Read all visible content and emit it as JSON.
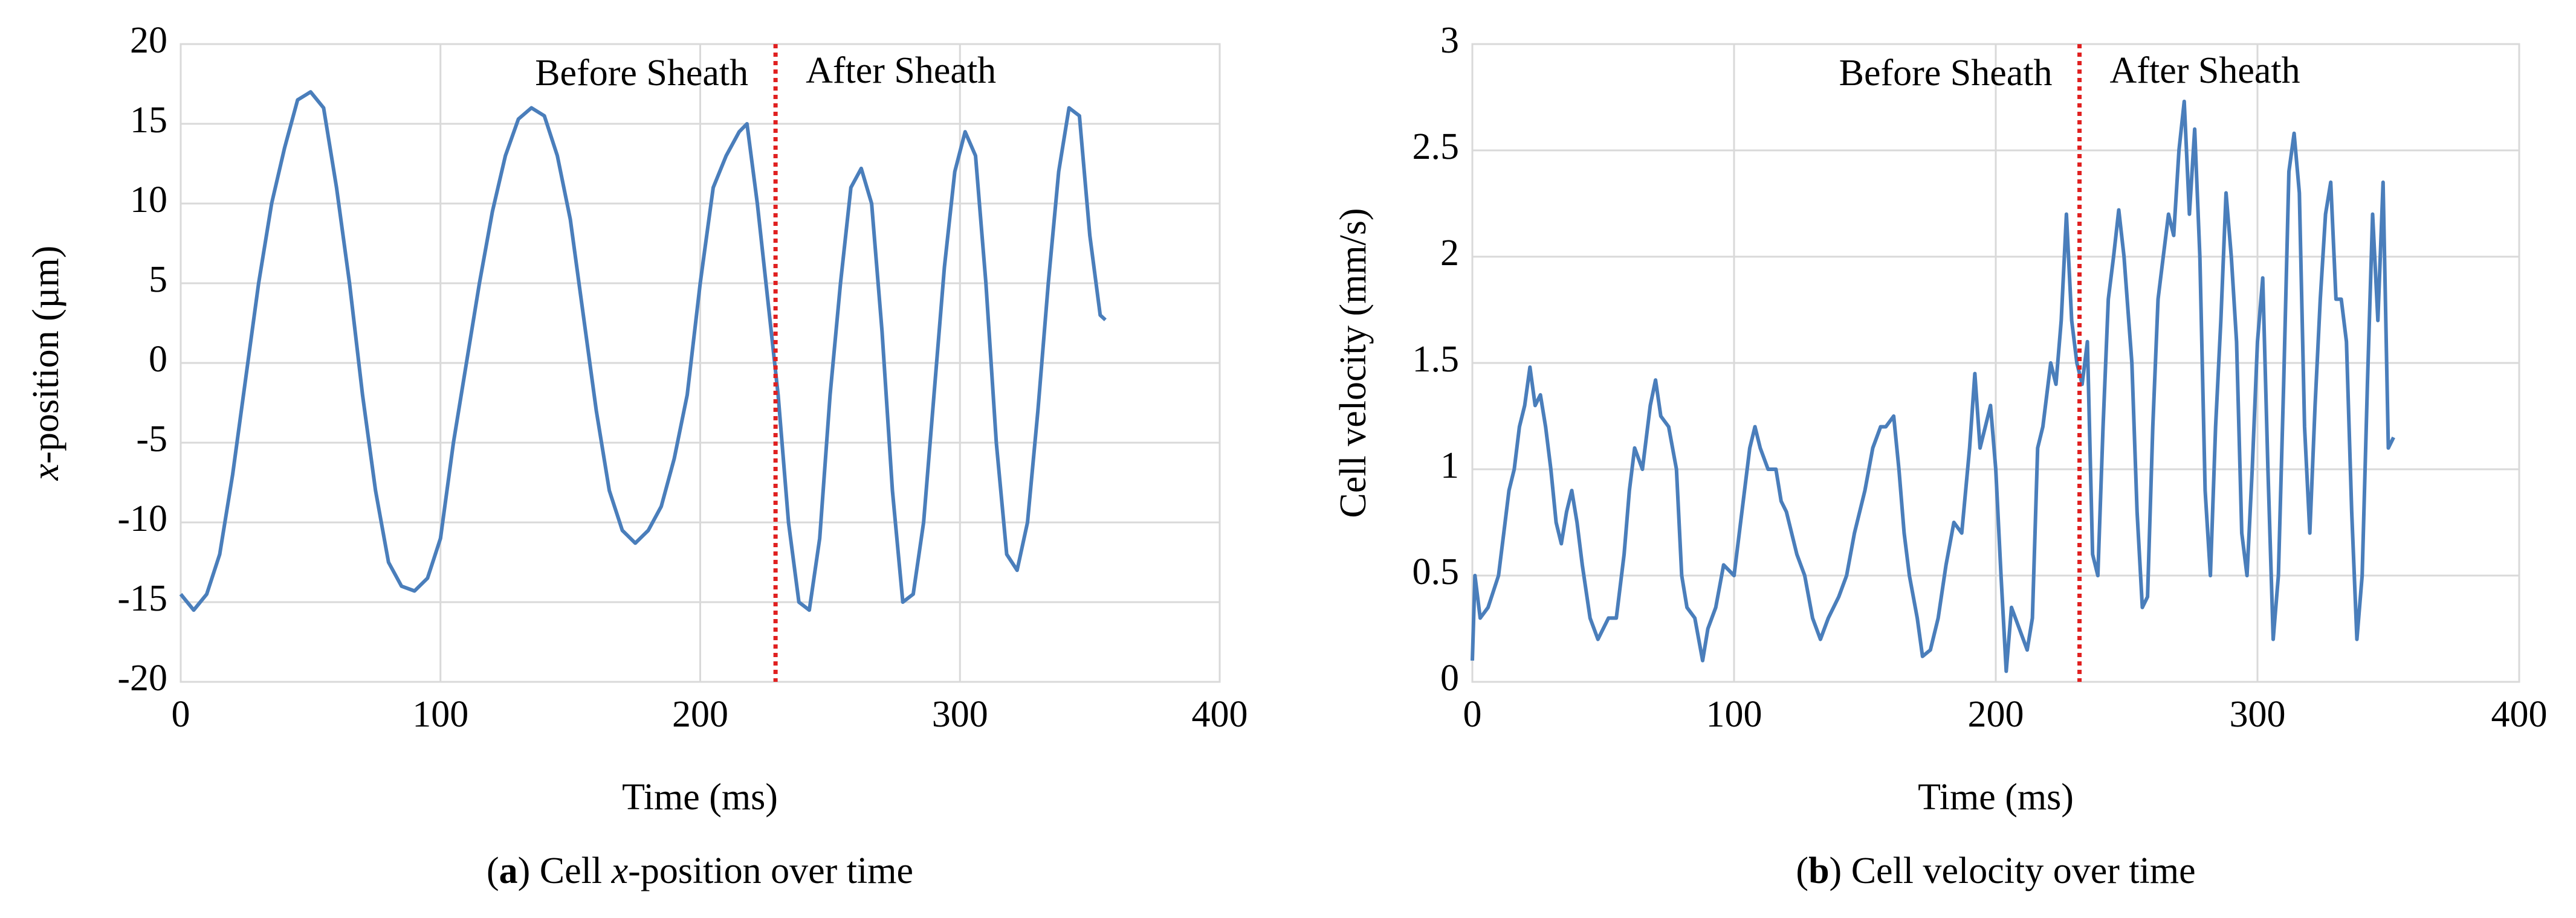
{
  "chart_data": [
    {
      "type": "line",
      "color": "#4a7ebb",
      "grid": true,
      "xlabel": "Time (ms)",
      "ylabel": [
        "x",
        "-position (µm)"
      ],
      "caption": [
        "(",
        "a",
        ") Cell ",
        "x",
        "-position over time"
      ],
      "annotations": [
        "Before Sheath",
        "After Sheath"
      ],
      "vline": 229,
      "vline_color": "#e02020",
      "xlim": [
        0,
        400
      ],
      "xticks": [
        0,
        100,
        200,
        300,
        400
      ],
      "ylim": [
        -20,
        20
      ],
      "yticks": [
        -20,
        -15,
        -10,
        -5,
        0,
        5,
        10,
        15,
        20
      ],
      "x": [
        0,
        5,
        10,
        15,
        20,
        25,
        30,
        35,
        40,
        45,
        50,
        55,
        60,
        65,
        70,
        75,
        80,
        85,
        90,
        95,
        100,
        105,
        110,
        115,
        120,
        125,
        130,
        135,
        140,
        145,
        150,
        155,
        160,
        165,
        170,
        175,
        180,
        185,
        190,
        195,
        200,
        205,
        210,
        215,
        218,
        222,
        226,
        230,
        234,
        238,
        242,
        246,
        250,
        254,
        258,
        262,
        266,
        270,
        274,
        278,
        282,
        286,
        290,
        294,
        298,
        302,
        306,
        310,
        314,
        318,
        322,
        326,
        330,
        334,
        338,
        342,
        346,
        350,
        354,
        356
      ],
      "values": [
        -14.5,
        -15.5,
        -14.5,
        -12,
        -7,
        -1,
        5,
        10,
        13.5,
        16.5,
        17,
        16,
        11,
        5,
        -2,
        -8,
        -12.5,
        -14,
        -14.3,
        -13.5,
        -11,
        -5,
        0,
        5,
        9.5,
        13,
        15.3,
        16,
        15.5,
        13,
        9,
        3,
        -3,
        -8,
        -10.5,
        -11.3,
        -10.5,
        -9,
        -6,
        -2,
        5,
        11,
        13,
        14.5,
        15,
        10,
        4,
        -2,
        -10,
        -15,
        -15.5,
        -11,
        -2,
        5,
        11,
        12.2,
        10,
        2,
        -8,
        -15,
        -14.5,
        -10,
        -2,
        6,
        12,
        14.5,
        13,
        5,
        -5,
        -12,
        -13,
        -10,
        -3,
        5,
        12,
        16,
        15.5,
        8,
        3,
        2.7
      ]
    },
    {
      "type": "line",
      "color": "#4a7ebb",
      "grid": true,
      "xlabel": "Time (ms)",
      "ylabel": [
        "Cell velocity (mm/s)"
      ],
      "caption": [
        "(",
        "b",
        ") Cell velocity over time"
      ],
      "annotations": [
        "Before Sheath",
        "After Sheath"
      ],
      "vline": 232,
      "vline_color": "#e02020",
      "xlim": [
        0,
        400
      ],
      "xticks": [
        0,
        100,
        200,
        300,
        400
      ],
      "ylim": [
        0,
        3
      ],
      "yticks": [
        0,
        0.5,
        1,
        1.5,
        2,
        2.5,
        3
      ],
      "x": [
        0,
        1,
        3,
        6,
        10,
        12,
        14,
        16,
        18,
        20,
        22,
        24,
        26,
        28,
        30,
        32,
        34,
        36,
        38,
        40,
        42,
        45,
        48,
        52,
        55,
        58,
        60,
        62,
        65,
        68,
        70,
        72,
        75,
        78,
        80,
        82,
        85,
        88,
        90,
        93,
        96,
        100,
        103,
        106,
        108,
        110,
        113,
        116,
        118,
        120,
        124,
        127,
        130,
        133,
        136,
        140,
        143,
        146,
        150,
        153,
        156,
        158,
        161,
        163,
        165,
        167,
        170,
        172,
        175,
        178,
        181,
        184,
        187,
        190,
        192,
        194,
        196,
        198,
        200,
        202,
        204,
        206,
        209,
        212,
        214,
        216,
        218,
        221,
        223,
        225,
        227,
        229,
        231,
        233,
        235,
        237,
        239,
        241,
        243,
        245,
        247,
        249,
        252,
        254,
        256,
        258,
        260,
        262,
        264,
        266,
        268,
        270,
        272,
        274,
        276,
        278,
        280,
        282,
        284,
        286,
        288,
        290,
        292,
        294,
        296,
        298,
        300,
        302,
        304,
        306,
        308,
        310,
        312,
        314,
        316,
        318,
        320,
        322,
        324,
        326,
        328,
        330,
        332,
        334,
        336,
        338,
        340,
        342,
        344,
        346,
        348,
        350,
        352
      ],
      "values": [
        0.1,
        0.5,
        0.3,
        0.35,
        0.5,
        0.7,
        0.9,
        1.0,
        1.2,
        1.3,
        1.48,
        1.3,
        1.35,
        1.2,
        1.0,
        0.75,
        0.65,
        0.8,
        0.9,
        0.75,
        0.55,
        0.3,
        0.2,
        0.3,
        0.3,
        0.6,
        0.9,
        1.1,
        1.0,
        1.3,
        1.42,
        1.25,
        1.2,
        1.0,
        0.5,
        0.35,
        0.3,
        0.1,
        0.25,
        0.35,
        0.55,
        0.5,
        0.8,
        1.1,
        1.2,
        1.1,
        1.0,
        1.0,
        0.85,
        0.8,
        0.6,
        0.5,
        0.3,
        0.2,
        0.3,
        0.4,
        0.5,
        0.7,
        0.9,
        1.1,
        1.2,
        1.2,
        1.25,
        1.0,
        0.7,
        0.5,
        0.3,
        0.12,
        0.15,
        0.3,
        0.55,
        0.75,
        0.7,
        1.1,
        1.45,
        1.1,
        1.2,
        1.3,
        1.0,
        0.5,
        0.05,
        0.35,
        0.25,
        0.15,
        0.3,
        1.1,
        1.2,
        1.5,
        1.4,
        1.7,
        2.2,
        1.7,
        1.5,
        1.4,
        1.6,
        0.6,
        0.5,
        1.2,
        1.8,
        2.0,
        2.22,
        2.0,
        1.5,
        0.8,
        0.35,
        0.4,
        1.2,
        1.8,
        2.0,
        2.2,
        2.1,
        2.5,
        2.73,
        2.2,
        2.6,
        2.0,
        0.9,
        0.5,
        1.2,
        1.7,
        2.3,
        2.0,
        1.6,
        0.7,
        0.5,
        1.0,
        1.6,
        1.9,
        1.0,
        0.2,
        0.5,
        1.4,
        2.4,
        2.58,
        2.3,
        1.2,
        0.7,
        1.3,
        1.8,
        2.2,
        2.35,
        1.8,
        1.8,
        1.6,
        0.8,
        0.2,
        0.5,
        1.4,
        2.2,
        1.7,
        2.35,
        1.1,
        1.15
      ]
    }
  ]
}
